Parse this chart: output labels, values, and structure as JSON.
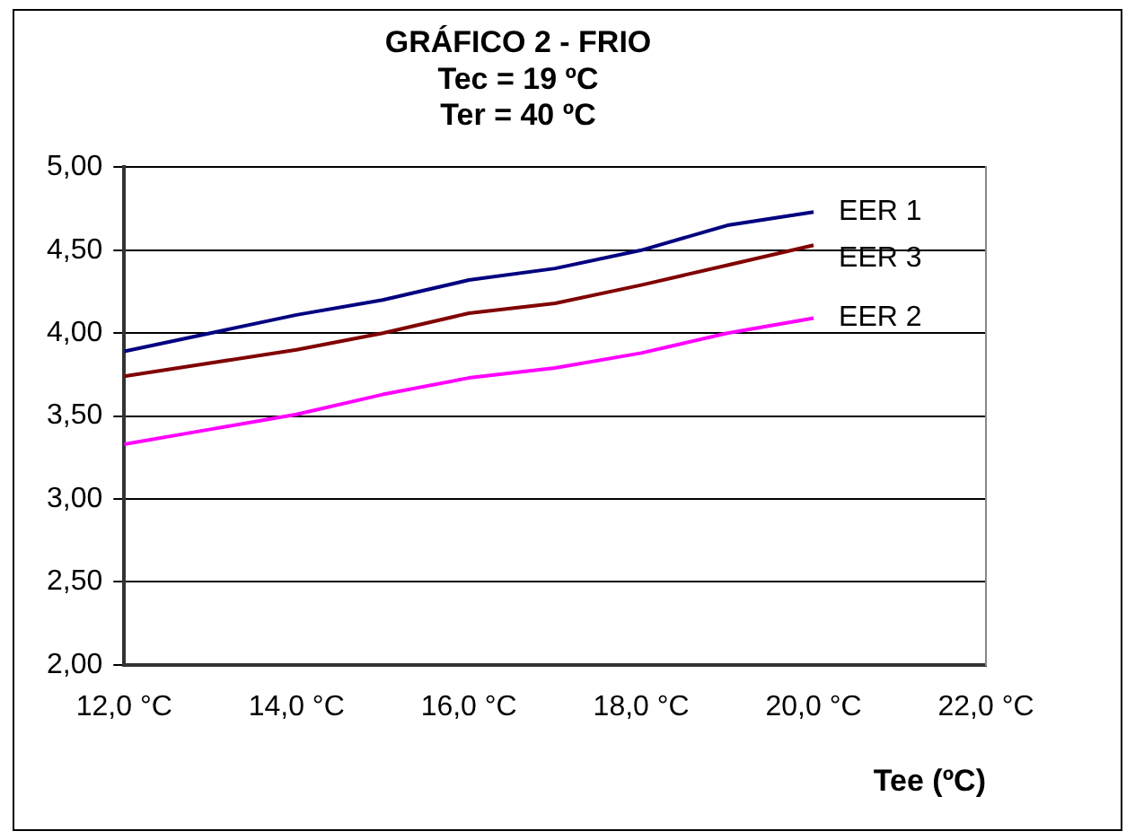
{
  "chart_data": {
    "type": "line",
    "title": "GRÁFICO 2 - FRIO",
    "subtitle": "Tec = 19 ºC\nTer = 40 ºC",
    "xlabel": "Tee (ºC)",
    "x": [
      12,
      13,
      14,
      15,
      16,
      17,
      18,
      19,
      20
    ],
    "series": [
      {
        "name": "EER 1",
        "color": "#000080",
        "values": [
          3.89,
          4.0,
          4.11,
          4.2,
          4.32,
          4.39,
          4.5,
          4.65,
          4.73
        ]
      },
      {
        "name": "EER 3",
        "color": "#800000",
        "values": [
          3.74,
          3.82,
          3.9,
          4.0,
          4.12,
          4.18,
          4.29,
          4.41,
          4.53
        ]
      },
      {
        "name": "EER 2",
        "color": "#ff00ff",
        "values": [
          3.33,
          3.42,
          3.51,
          3.63,
          3.73,
          3.79,
          3.88,
          4.0,
          4.09
        ]
      }
    ],
    "xlim": [
      12,
      22
    ],
    "xticks": [
      {
        "value": 12,
        "label": "12,0 °C"
      },
      {
        "value": 14,
        "label": "14,0 °C"
      },
      {
        "value": 16,
        "label": "16,0 °C"
      },
      {
        "value": 18,
        "label": "18,0 °C"
      },
      {
        "value": 20,
        "label": "20,0 °C"
      },
      {
        "value": 22,
        "label": "22,0 °C"
      }
    ],
    "ylim": [
      2,
      5
    ],
    "yticks": [
      {
        "value": 2,
        "label": "2,00"
      },
      {
        "value": 2.5,
        "label": "2,50"
      },
      {
        "value": 3,
        "label": "3,00"
      },
      {
        "value": 3.5,
        "label": "3,50"
      },
      {
        "value": 4,
        "label": "4,00"
      },
      {
        "value": 4.5,
        "label": "4,50"
      },
      {
        "value": 5,
        "label": "5,00"
      }
    ],
    "grid": "y",
    "legend": false,
    "marker": "none",
    "line_style": "solid"
  }
}
